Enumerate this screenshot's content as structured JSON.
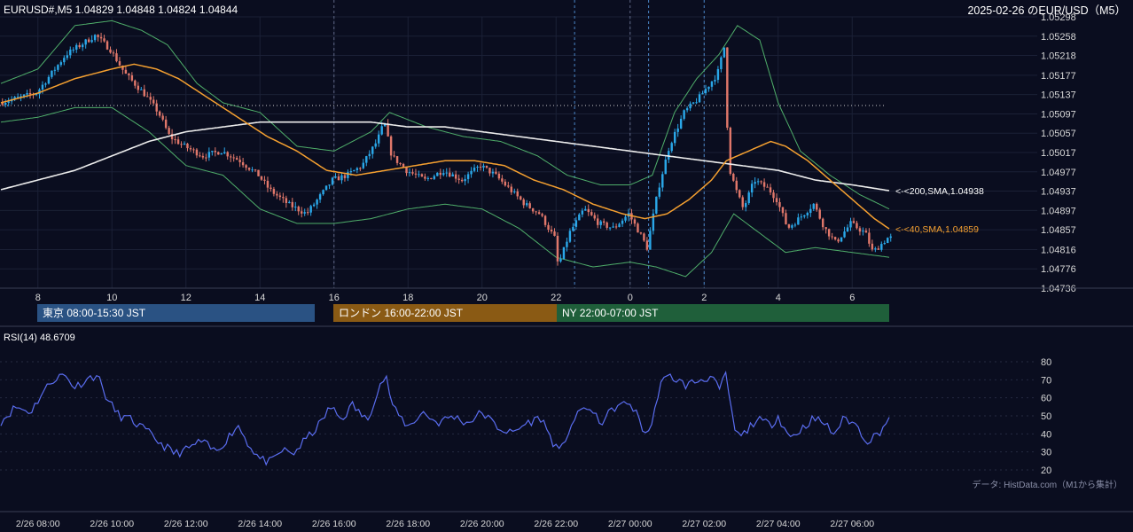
{
  "header": {
    "symbol_ohlc": "EURUSD#,M5 1.04829 1.04848 1.04824 1.04844",
    "title_right": "2025-02-26 のEUR/USD（M5）"
  },
  "price_axis": {
    "ticks": [
      "1.05298",
      "1.05258",
      "1.05218",
      "1.05177",
      "1.05137",
      "1.05097",
      "1.05057",
      "1.05017",
      "1.04977",
      "1.04937",
      "1.04897",
      "1.04857",
      "1.04816",
      "1.04776",
      "1.04736"
    ],
    "ylim": [
      1.04736,
      1.05298
    ]
  },
  "hour_axis": {
    "labels": [
      "8",
      "10",
      "12",
      "14",
      "16",
      "18",
      "20",
      "22",
      "0",
      "2",
      "4",
      "6"
    ]
  },
  "sma_labels": {
    "sma200": "<-<200,SMA,1.04938",
    "sma40": "<-<40,SMA,1.04859"
  },
  "sessions": [
    {
      "label": "東京 08:00-15:30 JST",
      "color": "#2a5283"
    },
    {
      "label": "ロンドン 16:00-22:00 JST",
      "color": "#8a5a14"
    },
    {
      "label": "NY 22:00-07:00 JST",
      "color": "#1f5f3a"
    }
  ],
  "rsi": {
    "title": "RSI(14) 48.6709",
    "ticks": [
      "80",
      "70",
      "60",
      "50",
      "40",
      "30",
      "20"
    ]
  },
  "footer": {
    "source": "データ: HistData.com（M1から集計）",
    "time_labels": [
      "2/26 08:00",
      "2/26 10:00",
      "2/26 12:00",
      "2/26 14:00",
      "2/26 16:00",
      "2/26 18:00",
      "2/26 20:00",
      "2/26 22:00",
      "2/27 00:00",
      "2/27 02:00",
      "2/27 04:00",
      "2/27 06:00"
    ]
  },
  "colors": {
    "background": "#0a0d1f",
    "bull": "#2aa7e8",
    "bear": "#e0776a",
    "sma40": "#f5a030",
    "sma200": "#ececec",
    "bollinger": "#4fae6a",
    "rsi_line": "#5a6df0"
  },
  "chart_data": [
    {
      "type": "candlestick",
      "title": "EURUSD#,M5",
      "timeframe": "M5",
      "ylim": [
        1.04736,
        1.05298
      ],
      "x_range": [
        "2025-02-26 08:00 JST",
        "2025-02-27 07:00 JST"
      ],
      "last_ohlc": {
        "open": 1.04829,
        "high": 1.04848,
        "low": 1.04824,
        "close": 1.04844
      },
      "anchors_hour_price": [
        [
          7.0,
          1.0512
        ],
        [
          7.5,
          1.0513
        ],
        [
          8.0,
          1.0514
        ],
        [
          8.4,
          1.0518
        ],
        [
          8.8,
          1.0522
        ],
        [
          9.2,
          1.0524
        ],
        [
          9.6,
          1.0526
        ],
        [
          10.0,
          1.0523
        ],
        [
          10.4,
          1.0518
        ],
        [
          10.9,
          1.0514
        ],
        [
          11.3,
          1.051
        ],
        [
          11.6,
          1.0505
        ],
        [
          12.0,
          1.0503
        ],
        [
          12.5,
          1.0501
        ],
        [
          13.0,
          1.0502
        ],
        [
          13.5,
          1.05
        ],
        [
          14.0,
          1.0497
        ],
        [
          14.3,
          1.0494
        ],
        [
          14.8,
          1.0491
        ],
        [
          15.3,
          1.0489
        ],
        [
          15.7,
          1.0493
        ],
        [
          16.0,
          1.0496
        ],
        [
          16.4,
          1.0497
        ],
        [
          16.8,
          1.0499
        ],
        [
          17.2,
          1.0504
        ],
        [
          17.4,
          1.0508
        ],
        [
          17.6,
          1.0501
        ],
        [
          18.0,
          1.0498
        ],
        [
          18.5,
          1.0496
        ],
        [
          19.0,
          1.0498
        ],
        [
          19.5,
          1.0496
        ],
        [
          20.0,
          1.0499
        ],
        [
          20.4,
          1.0497
        ],
        [
          20.8,
          1.0494
        ],
        [
          21.2,
          1.0491
        ],
        [
          21.6,
          1.0489
        ],
        [
          22.0,
          1.0484
        ],
        [
          22.1,
          1.0478
        ],
        [
          22.4,
          1.0485
        ],
        [
          22.8,
          1.049
        ],
        [
          23.2,
          1.0487
        ],
        [
          23.6,
          1.0486
        ],
        [
          24.0,
          1.0489
        ],
        [
          24.3,
          1.0485
        ],
        [
          24.5,
          1.0482
        ],
        [
          24.8,
          1.0494
        ],
        [
          25.1,
          1.0503
        ],
        [
          25.5,
          1.051
        ],
        [
          25.9,
          1.0513
        ],
        [
          26.2,
          1.0516
        ],
        [
          26.4,
          1.0518
        ],
        [
          26.6,
          1.0524
        ],
        [
          26.7,
          1.0499
        ],
        [
          26.9,
          1.0494
        ],
        [
          27.1,
          1.049
        ],
        [
          27.4,
          1.0496
        ],
        [
          27.8,
          1.0494
        ],
        [
          28.0,
          1.0492
        ],
        [
          28.3,
          1.0486
        ],
        [
          28.6,
          1.0488
        ],
        [
          29.0,
          1.0491
        ],
        [
          29.3,
          1.0486
        ],
        [
          29.6,
          1.0483
        ],
        [
          30.0,
          1.0487
        ],
        [
          30.4,
          1.0485
        ],
        [
          30.6,
          1.0481
        ],
        [
          31.0,
          1.0484
        ]
      ],
      "sma40_hour_price": [
        [
          7.0,
          1.0512
        ],
        [
          8.0,
          1.0514
        ],
        [
          9.0,
          1.0517
        ],
        [
          10.0,
          1.0519
        ],
        [
          10.6,
          1.052
        ],
        [
          11.2,
          1.0519
        ],
        [
          11.8,
          1.0517
        ],
        [
          12.6,
          1.0513
        ],
        [
          13.4,
          1.0509
        ],
        [
          14.2,
          1.0505
        ],
        [
          15.0,
          1.0502
        ],
        [
          15.8,
          1.0498
        ],
        [
          16.6,
          1.0497
        ],
        [
          17.4,
          1.0498
        ],
        [
          18.2,
          1.0499
        ],
        [
          19.0,
          1.05
        ],
        [
          19.8,
          1.05
        ],
        [
          20.6,
          1.0499
        ],
        [
          21.4,
          1.0496
        ],
        [
          22.2,
          1.0494
        ],
        [
          23.0,
          1.0491
        ],
        [
          23.8,
          1.0489
        ],
        [
          24.4,
          1.0488
        ],
        [
          25.0,
          1.0489
        ],
        [
          25.6,
          1.0492
        ],
        [
          26.2,
          1.0496
        ],
        [
          26.6,
          1.05
        ],
        [
          27.2,
          1.0502
        ],
        [
          27.8,
          1.0504
        ],
        [
          28.2,
          1.0503
        ],
        [
          28.8,
          1.05
        ],
        [
          29.4,
          1.0496
        ],
        [
          30.0,
          1.0492
        ],
        [
          30.6,
          1.0488
        ],
        [
          31.0,
          1.04859
        ]
      ],
      "sma200_hour_price": [
        [
          7.0,
          1.0494
        ],
        [
          8.0,
          1.0496
        ],
        [
          9.0,
          1.0498
        ],
        [
          10.0,
          1.0501
        ],
        [
          11.0,
          1.0504
        ],
        [
          12.0,
          1.0506
        ],
        [
          13.0,
          1.0507
        ],
        [
          14.0,
          1.0508
        ],
        [
          15.0,
          1.0508
        ],
        [
          16.0,
          1.0508
        ],
        [
          17.0,
          1.0508
        ],
        [
          18.0,
          1.0507
        ],
        [
          19.0,
          1.0507
        ],
        [
          20.0,
          1.0506
        ],
        [
          21.0,
          1.0505
        ],
        [
          22.0,
          1.0504
        ],
        [
          23.0,
          1.0503
        ],
        [
          24.0,
          1.0502
        ],
        [
          25.0,
          1.0501
        ],
        [
          26.0,
          1.05
        ],
        [
          27.0,
          1.0499
        ],
        [
          28.0,
          1.0498
        ],
        [
          29.0,
          1.0496
        ],
        [
          30.0,
          1.0495
        ],
        [
          31.0,
          1.04938
        ]
      ],
      "bb_upper_hour_price": [
        [
          7.0,
          1.0516
        ],
        [
          8.0,
          1.0519
        ],
        [
          9.0,
          1.0528
        ],
        [
          10.0,
          1.0529
        ],
        [
          10.8,
          1.0527
        ],
        [
          11.5,
          1.0524
        ],
        [
          12.3,
          1.0516
        ],
        [
          13.0,
          1.0512
        ],
        [
          14.0,
          1.051
        ],
        [
          15.0,
          1.0503
        ],
        [
          16.0,
          1.0502
        ],
        [
          17.0,
          1.0506
        ],
        [
          17.5,
          1.051
        ],
        [
          18.5,
          1.0507
        ],
        [
          19.5,
          1.0505
        ],
        [
          20.5,
          1.0504
        ],
        [
          21.5,
          1.0501
        ],
        [
          22.3,
          1.0497
        ],
        [
          23.2,
          1.0495
        ],
        [
          24.0,
          1.0495
        ],
        [
          24.6,
          1.0497
        ],
        [
          25.2,
          1.051
        ],
        [
          25.8,
          1.0517
        ],
        [
          26.4,
          1.0522
        ],
        [
          26.9,
          1.0528
        ],
        [
          27.5,
          1.0525
        ],
        [
          28.0,
          1.0512
        ],
        [
          28.6,
          1.0502
        ],
        [
          29.4,
          1.0497
        ],
        [
          30.2,
          1.0493
        ],
        [
          31.0,
          1.049
        ]
      ],
      "bb_lower_hour_price": [
        [
          7.0,
          1.0508
        ],
        [
          8.0,
          1.0509
        ],
        [
          9.0,
          1.0511
        ],
        [
          10.0,
          1.0511
        ],
        [
          11.0,
          1.0506
        ],
        [
          12.0,
          1.0499
        ],
        [
          13.0,
          1.0497
        ],
        [
          14.0,
          1.049
        ],
        [
          15.0,
          1.0487
        ],
        [
          16.0,
          1.0487
        ],
        [
          17.0,
          1.0488
        ],
        [
          18.0,
          1.049
        ],
        [
          19.0,
          1.0491
        ],
        [
          20.0,
          1.049
        ],
        [
          21.0,
          1.0486
        ],
        [
          22.0,
          1.048
        ],
        [
          23.0,
          1.0478
        ],
        [
          24.0,
          1.0479
        ],
        [
          24.7,
          1.0478
        ],
        [
          25.5,
          1.0476
        ],
        [
          26.2,
          1.0481
        ],
        [
          26.8,
          1.0489
        ],
        [
          27.5,
          1.0485
        ],
        [
          28.2,
          1.0481
        ],
        [
          29.0,
          1.0482
        ],
        [
          30.0,
          1.0481
        ],
        [
          31.0,
          1.048
        ]
      ],
      "series_labels": [
        "<-<200,SMA,1.04938",
        "<-<40,SMA,1.04859"
      ]
    },
    {
      "type": "line",
      "title": "RSI(14) 48.6709",
      "ylim": [
        20,
        80
      ],
      "last_value": 48.6709,
      "values_hour": [
        [
          7.0,
          47
        ],
        [
          7.4,
          55
        ],
        [
          7.8,
          52
        ],
        [
          8.1,
          62
        ],
        [
          8.4,
          70
        ],
        [
          8.7,
          73
        ],
        [
          9.0,
          66
        ],
        [
          9.3,
          70
        ],
        [
          9.6,
          73
        ],
        [
          9.9,
          58
        ],
        [
          10.2,
          50
        ],
        [
          10.5,
          48
        ],
        [
          10.9,
          42
        ],
        [
          11.3,
          35
        ],
        [
          11.7,
          29
        ],
        [
          12.0,
          31
        ],
        [
          12.4,
          36
        ],
        [
          12.8,
          30
        ],
        [
          13.1,
          37
        ],
        [
          13.4,
          45
        ],
        [
          13.7,
          34
        ],
        [
          14.0,
          26
        ],
        [
          14.3,
          24
        ],
        [
          14.6,
          31
        ],
        [
          14.9,
          29
        ],
        [
          15.2,
          36
        ],
        [
          15.6,
          45
        ],
        [
          15.9,
          55
        ],
        [
          16.2,
          48
        ],
        [
          16.5,
          56
        ],
        [
          16.9,
          47
        ],
        [
          17.2,
          66
        ],
        [
          17.4,
          72
        ],
        [
          17.6,
          54
        ],
        [
          18.0,
          44
        ],
        [
          18.4,
          52
        ],
        [
          18.8,
          46
        ],
        [
          19.2,
          50
        ],
        [
          19.6,
          46
        ],
        [
          20.0,
          52
        ],
        [
          20.4,
          44
        ],
        [
          20.8,
          40
        ],
        [
          21.2,
          46
        ],
        [
          21.6,
          49
        ],
        [
          21.9,
          36
        ],
        [
          22.1,
          29
        ],
        [
          22.4,
          45
        ],
        [
          22.8,
          56
        ],
        [
          23.2,
          46
        ],
        [
          23.6,
          55
        ],
        [
          24.0,
          57
        ],
        [
          24.2,
          50
        ],
        [
          24.4,
          40
        ],
        [
          24.6,
          45
        ],
        [
          24.8,
          68
        ],
        [
          25.1,
          72
        ],
        [
          25.5,
          67
        ],
        [
          25.9,
          70
        ],
        [
          26.2,
          72
        ],
        [
          26.4,
          64
        ],
        [
          26.6,
          73
        ],
        [
          26.8,
          43
        ],
        [
          27.0,
          38
        ],
        [
          27.4,
          48
        ],
        [
          27.8,
          45
        ],
        [
          28.0,
          50
        ],
        [
          28.3,
          38
        ],
        [
          28.6,
          42
        ],
        [
          28.9,
          48
        ],
        [
          29.2,
          47
        ],
        [
          29.5,
          40
        ],
        [
          29.8,
          49
        ],
        [
          30.1,
          45
        ],
        [
          30.4,
          36
        ],
        [
          30.7,
          40
        ],
        [
          31.0,
          48.67
        ]
      ]
    }
  ]
}
